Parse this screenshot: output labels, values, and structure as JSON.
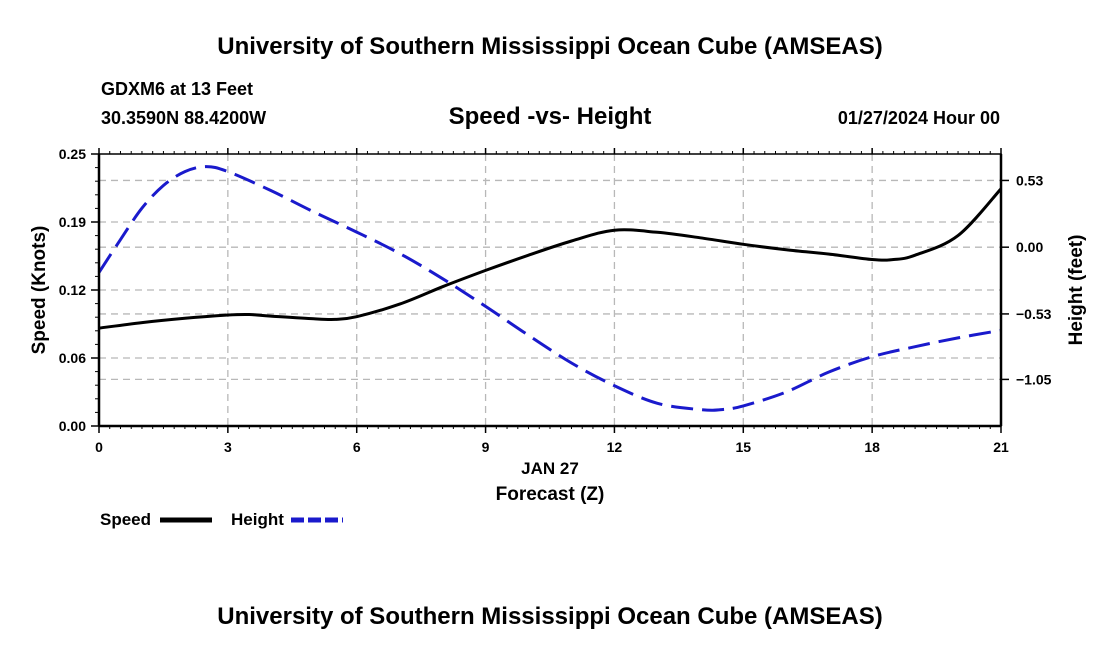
{
  "header": {
    "title": "University of Southern Mississippi Ocean Cube (AMSEAS)",
    "station": "GDXM6 at 13 Feet",
    "coords": "30.3590N  88.4200W",
    "chart_title": "Speed -vs- Height",
    "datetime": "01/27/2024 Hour 00"
  },
  "footer": {
    "title": "University of Southern Mississippi Ocean Cube (AMSEAS)"
  },
  "chart_data": {
    "type": "line",
    "title": "Speed -vs- Height",
    "xlabel": "Forecast (Z)",
    "xlabel_date": "JAN 27",
    "ylabel": "Speed (Knots)",
    "y2label": "Height (feet)",
    "xlim": [
      0,
      21
    ],
    "ylim": [
      0,
      0.25
    ],
    "y2lim": [
      -1.42,
      0.74
    ],
    "grid": true,
    "x_ticks": [
      0,
      3,
      6,
      9,
      12,
      15,
      18,
      21
    ],
    "x_tick_labels": [
      "0",
      "3",
      "6",
      "9",
      "12",
      "15",
      "18",
      "21"
    ],
    "y_ticks": [
      0,
      0.0625,
      0.125,
      0.1875,
      0.25
    ],
    "y_tick_labels": [
      "0.00",
      "0.06",
      "0.12",
      "0.19",
      "0.25"
    ],
    "y2_ticks": [
      0.53,
      0.0,
      -0.53,
      -1.05
    ],
    "y2_tick_labels": [
      "0.53",
      "0.00",
      "−0.53",
      "−1.05"
    ],
    "series": [
      {
        "name": "Speed",
        "axis": "left",
        "color": "#000000",
        "dash": "solid",
        "x": [
          0,
          1,
          2,
          3,
          3.5,
          4,
          5,
          5.5,
          6,
          7,
          8,
          9,
          10,
          11,
          12,
          13,
          14,
          15,
          16,
          17,
          18,
          18.5,
          19,
          20,
          21
        ],
        "values": [
          0.09,
          0.095,
          0.099,
          0.102,
          0.1025,
          0.101,
          0.0985,
          0.098,
          0.1005,
          0.112,
          0.128,
          0.143,
          0.157,
          0.17,
          0.18,
          0.178,
          0.173,
          0.167,
          0.162,
          0.158,
          0.153,
          0.153,
          0.157,
          0.175,
          0.218
        ]
      },
      {
        "name": "Height",
        "axis": "right",
        "color": "#1a1acc",
        "dash": "dashed",
        "x": [
          0,
          0.5,
          1,
          1.5,
          2,
          2.5,
          3,
          4,
          5,
          6,
          7,
          8,
          9,
          10,
          11,
          12,
          13,
          14,
          14.5,
          15,
          16,
          17,
          18,
          19,
          20,
          21
        ],
        "values": [
          -0.2,
          0.06,
          0.31,
          0.49,
          0.6,
          0.64,
          0.6,
          0.45,
          0.28,
          0.12,
          -0.05,
          -0.25,
          -0.47,
          -0.7,
          -0.92,
          -1.1,
          -1.24,
          -1.29,
          -1.29,
          -1.26,
          -1.15,
          -0.99,
          -0.87,
          -0.79,
          -0.72,
          -0.66
        ]
      }
    ],
    "legend": {
      "position": "bottom-left",
      "speed_label": "Speed",
      "height_label": "Height"
    }
  }
}
